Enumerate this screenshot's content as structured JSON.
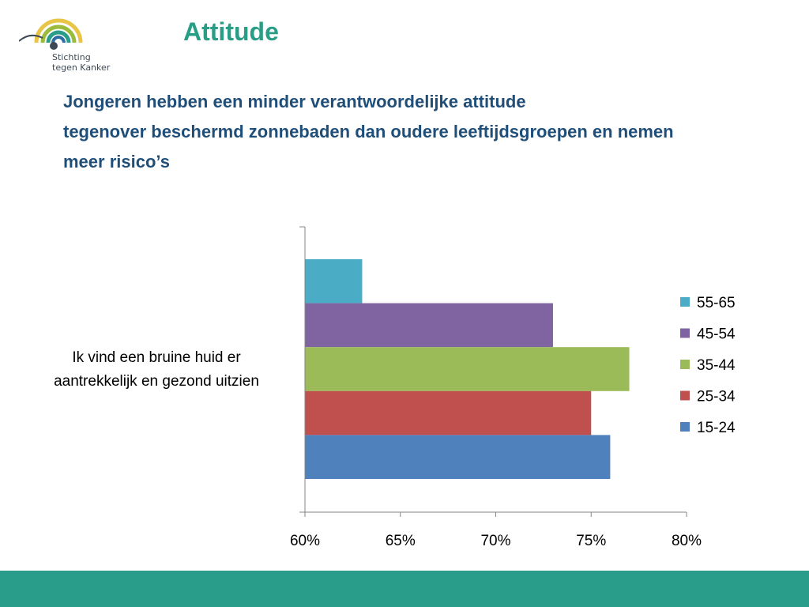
{
  "logo": {
    "line1": "Stichting",
    "line2": "tegen Kanker"
  },
  "slide": {
    "title": "Attitude",
    "subtitle_lines": [
      "Jongeren hebben een minder verantwoordelijke attitude",
      "tegenover beschermd zonnebaden dan oudere leeftijdsgroepen en nemen",
      "meer risico’s"
    ]
  },
  "colors": {
    "title": "#2a9d86",
    "subtitle": "#1f4e79",
    "footer": "#2a9d8a"
  },
  "chart_data": {
    "type": "bar",
    "orientation": "horizontal",
    "categories": [
      "Ik vind een bruine huid er aantrekkelijk en gezond uitzien"
    ],
    "category_label_lines": [
      "Ik vind een bruine huid er",
      "aantrekkelijk en gezond uitzien"
    ],
    "series": [
      {
        "name": "55-65",
        "values": [
          63
        ],
        "color": "#4bacc6"
      },
      {
        "name": "45-54",
        "values": [
          73
        ],
        "color": "#8064a2"
      },
      {
        "name": "35-44",
        "values": [
          77
        ],
        "color": "#9bbb59"
      },
      {
        "name": "25-34",
        "values": [
          75
        ],
        "color": "#c0504d"
      },
      {
        "name": "15-24",
        "values": [
          76
        ],
        "color": "#4f81bd"
      }
    ],
    "xlim": [
      60,
      80
    ],
    "xticks": [
      60,
      65,
      70,
      75,
      80
    ],
    "tick_labels": [
      "60%",
      "65%",
      "70%",
      "75%",
      "80%"
    ],
    "legend": "right",
    "grid": false,
    "title": "",
    "xlabel": "",
    "ylabel": ""
  }
}
